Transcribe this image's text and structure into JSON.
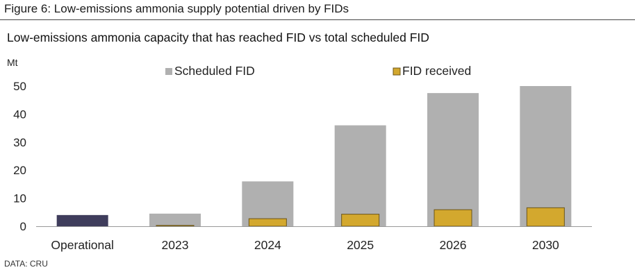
{
  "figure": {
    "title": "Figure 6: Low-emissions ammonia supply potential driven by FIDs",
    "source": "DATA: CRU"
  },
  "chart_data": {
    "type": "bar",
    "title": "Low-emissions ammonia capacity that has reached FID vs total scheduled FID",
    "ylabel": "Mt",
    "xlabel": "",
    "categories": [
      "Operational",
      "2023",
      "2024",
      "2025",
      "2026",
      "2030"
    ],
    "series": [
      {
        "name": "Operational",
        "values": [
          4.0,
          null,
          null,
          null,
          null,
          null
        ],
        "color": "#3f3d5c"
      },
      {
        "name": "Scheduled FID",
        "values": [
          null,
          4.5,
          16.0,
          36.0,
          47.5,
          50.0
        ],
        "color": "#b0b0b0"
      },
      {
        "name": "FID received",
        "values": [
          null,
          0.3,
          2.7,
          4.3,
          5.9,
          6.6
        ],
        "color": "#d3a82e"
      }
    ],
    "ylim": [
      0,
      50
    ],
    "yticks": [
      0,
      10,
      20,
      30,
      40,
      50
    ],
    "legend": [
      {
        "name": "Scheduled FID",
        "color": "#b0b0b0"
      },
      {
        "name": "FID received",
        "color": "#d3a82e"
      }
    ],
    "legend_position": "top",
    "grid": false
  }
}
